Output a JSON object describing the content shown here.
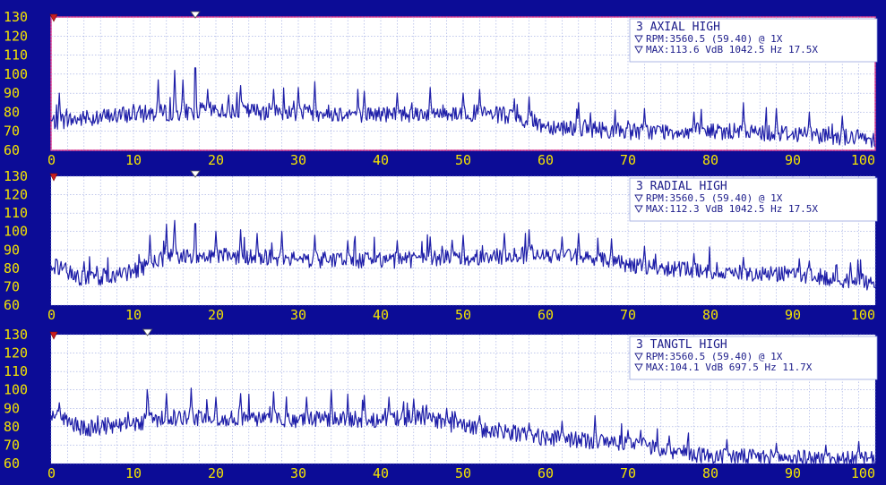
{
  "colors": {
    "background": "#0c0c96",
    "plot_area": "#ffffff",
    "grid": "#9aa6e0",
    "trace": "#1e1ea8",
    "tick_labels": "#f4e400",
    "info_text": "#1c1c8a",
    "active_border": "#e0338a",
    "marker": "#c81e1e"
  },
  "chart_data": [
    {
      "type": "line",
      "title": "3  AXIAL  HIGH",
      "rpm_line": "RPM:3560.5 (59.40) @ 1X",
      "max_line": "MAX:113.6 VdB 1042.5 Hz 17.5X",
      "xlim": [
        0,
        100
      ],
      "ylim": [
        60,
        130
      ],
      "x_ticks": [
        "0",
        "10",
        "20",
        "30",
        "40",
        "50",
        "60",
        "70",
        "80",
        "90",
        "100"
      ],
      "y_ticks": [
        "60",
        "70",
        "80",
        "90",
        "100",
        "110",
        "120",
        "130"
      ],
      "grid": true,
      "selected": true,
      "peak": {
        "x": 17.5,
        "y": 113.6
      },
      "base": [
        [
          0,
          75
        ],
        [
          10,
          79
        ],
        [
          20,
          81
        ],
        [
          30,
          80
        ],
        [
          40,
          79
        ],
        [
          50,
          80
        ],
        [
          55,
          78
        ],
        [
          60,
          73
        ],
        [
          70,
          70
        ],
        [
          80,
          70
        ],
        [
          90,
          69
        ],
        [
          100,
          66
        ]
      ],
      "peaks": [
        [
          1,
          90
        ],
        [
          13,
          97
        ],
        [
          15,
          102
        ],
        [
          16,
          97
        ],
        [
          17.5,
          113.6
        ],
        [
          19,
          92
        ],
        [
          23,
          94
        ],
        [
          27,
          92
        ],
        [
          30,
          93
        ],
        [
          32,
          96
        ],
        [
          38,
          91
        ],
        [
          42,
          90
        ],
        [
          46,
          93
        ],
        [
          50,
          90
        ],
        [
          52,
          92
        ],
        [
          58,
          88
        ],
        [
          64,
          85
        ],
        [
          72,
          82
        ],
        [
          78,
          80
        ],
        [
          84,
          85
        ],
        [
          88,
          82
        ],
        [
          92,
          80
        ],
        [
          96,
          78
        ]
      ]
    },
    {
      "type": "line",
      "title": "3  RADIAL  HIGH",
      "rpm_line": "RPM:3560.5 (59.40) @ 1X",
      "max_line": "MAX:112.3 VdB 1042.5 Hz 17.5X",
      "xlim": [
        0,
        100
      ],
      "ylim": [
        60,
        130
      ],
      "x_ticks": [
        "0",
        "10",
        "20",
        "30",
        "40",
        "50",
        "60",
        "70",
        "80",
        "90",
        "100"
      ],
      "y_ticks": [
        "60",
        "70",
        "80",
        "90",
        "100",
        "110",
        "120",
        "130"
      ],
      "grid": true,
      "selected": false,
      "peak": {
        "x": 17.5,
        "y": 112.3
      },
      "base": [
        [
          0,
          82
        ],
        [
          4,
          74
        ],
        [
          10,
          78
        ],
        [
          14,
          86
        ],
        [
          20,
          87
        ],
        [
          30,
          85
        ],
        [
          40,
          84
        ],
        [
          50,
          86
        ],
        [
          60,
          87
        ],
        [
          65,
          86
        ],
        [
          70,
          82
        ],
        [
          80,
          78
        ],
        [
          90,
          77
        ],
        [
          100,
          72
        ]
      ],
      "peaks": [
        [
          12,
          98
        ],
        [
          14,
          104
        ],
        [
          15,
          106
        ],
        [
          17.5,
          112.3
        ],
        [
          20,
          100
        ],
        [
          23,
          101
        ],
        [
          25,
          99
        ],
        [
          28,
          100
        ],
        [
          32,
          98
        ],
        [
          36,
          95
        ],
        [
          42,
          95
        ],
        [
          46,
          97
        ],
        [
          50,
          98
        ],
        [
          55,
          99
        ],
        [
          58,
          101
        ],
        [
          62,
          97
        ],
        [
          64,
          99
        ],
        [
          68,
          96
        ],
        [
          72,
          92
        ],
        [
          78,
          88
        ],
        [
          84,
          86
        ],
        [
          92,
          84
        ],
        [
          97,
          83
        ]
      ]
    },
    {
      "type": "line",
      "title": "3  TANGTL  HIGH",
      "rpm_line": "RPM:3560.5 (59.40) @ 1X",
      "max_line": "MAX:104.1 VdB 697.5 Hz 11.7X",
      "xlim": [
        0,
        100
      ],
      "ylim": [
        60,
        130
      ],
      "x_ticks": [
        "0",
        "10",
        "20",
        "30",
        "40",
        "50",
        "60",
        "70",
        "80",
        "90",
        "100"
      ],
      "y_ticks": [
        "60",
        "70",
        "80",
        "90",
        "100",
        "110",
        "120",
        "130"
      ],
      "grid": true,
      "selected": false,
      "peak": {
        "x": 11.7,
        "y": 104.1
      },
      "base": [
        [
          0,
          88
        ],
        [
          4,
          79
        ],
        [
          10,
          82
        ],
        [
          15,
          85
        ],
        [
          20,
          85
        ],
        [
          30,
          84
        ],
        [
          40,
          84
        ],
        [
          45,
          85
        ],
        [
          50,
          80
        ],
        [
          60,
          74
        ],
        [
          70,
          71
        ],
        [
          75,
          67
        ],
        [
          80,
          64
        ],
        [
          90,
          63
        ],
        [
          100,
          62
        ]
      ],
      "peaks": [
        [
          1,
          93
        ],
        [
          11.7,
          104.1
        ],
        [
          14,
          98
        ],
        [
          17,
          101
        ],
        [
          20,
          96
        ],
        [
          23,
          98
        ],
        [
          27,
          99
        ],
        [
          31,
          96
        ],
        [
          34,
          100
        ],
        [
          38,
          97
        ],
        [
          41,
          96
        ],
        [
          44,
          95
        ],
        [
          48,
          90
        ],
        [
          52,
          86
        ],
        [
          58,
          82
        ],
        [
          62,
          83
        ],
        [
          66,
          86
        ],
        [
          70,
          78
        ],
        [
          75,
          75
        ],
        [
          82,
          73
        ],
        [
          88,
          71
        ],
        [
          94,
          70
        ],
        [
          98,
          72
        ]
      ]
    }
  ]
}
